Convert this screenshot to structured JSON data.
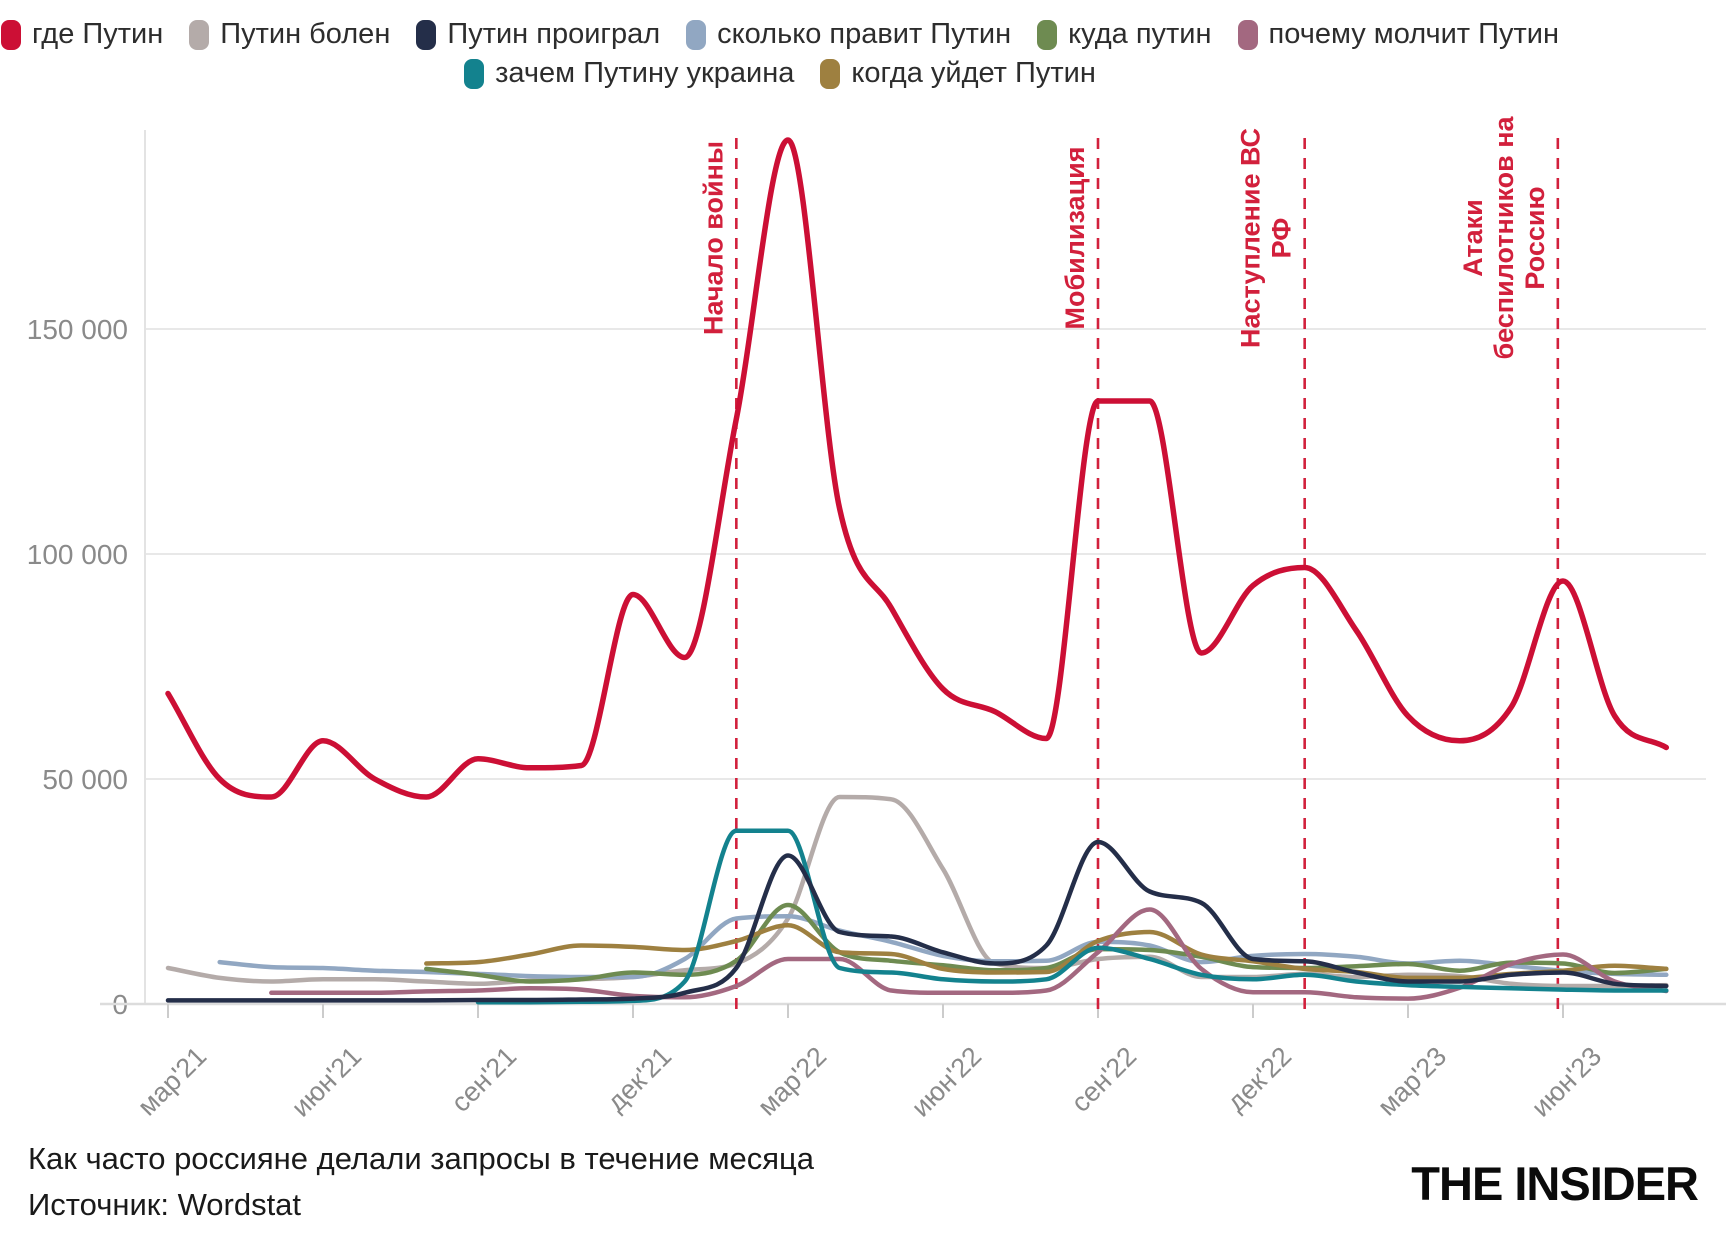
{
  "legend": {
    "rows": [
      [
        0,
        1,
        2,
        3,
        4,
        5
      ],
      [
        6,
        7
      ]
    ]
  },
  "footer": {
    "title": "Как часто россияне делали запросы в течение месяца",
    "source": "Источник: Wordstat"
  },
  "logo": {
    "text": "THE INSIDER"
  },
  "colors": {
    "annotation_red": "#d2203c",
    "grid": "#e8e8e8",
    "baseline": "#dcdcdc",
    "tick": "#cccccc",
    "axis_text": "#8a8a8a"
  },
  "chart_data": {
    "type": "line",
    "x": [
      "мар'21",
      "апр'21",
      "май'21",
      "июн'21",
      "июл'21",
      "авг'21",
      "сен'21",
      "окт'21",
      "ноя'21",
      "дек'21",
      "янв'22",
      "фев'22",
      "мар'22",
      "апр'22",
      "май'22",
      "июн'22",
      "июл'22",
      "авг'22",
      "сен'22",
      "окт'22",
      "ноя'22",
      "дек'22",
      "янв'23",
      "фев'23",
      "мар'23",
      "апр'23",
      "май'23",
      "июн'23",
      "июл'23",
      "авг'23"
    ],
    "x_tick_labels": [
      "мар'21",
      "июн'21",
      "сен'21",
      "дек'21",
      "мар'22",
      "июн'22",
      "сен'22",
      "дек'22",
      "мар'23",
      "июн'23"
    ],
    "x_tick_every": 3,
    "y_ticks": [
      0,
      50000,
      100000,
      150000
    ],
    "y_tick_labels": [
      "0",
      "50 000",
      "100 000",
      "150 000"
    ],
    "ylim": [
      0,
      195000
    ],
    "grid": "horizontal",
    "legend_position": "top",
    "series": [
      {
        "name": "где Путин",
        "color": "#cc0f35",
        "values": [
          69000,
          50000,
          46000,
          58500,
          50000,
          46000,
          54500,
          52500,
          53000,
          91000,
          77000,
          130000,
          192000,
          110000,
          88000,
          70000,
          65000,
          59000,
          134000,
          134000,
          78000,
          93000,
          97000,
          83000,
          64000,
          58500,
          66000,
          94000,
          64000,
          57000
        ]
      },
      {
        "name": "Путин болен",
        "color": "#b4aba9",
        "values": [
          8000,
          5800,
          5000,
          5500,
          5500,
          5000,
          4500,
          5200,
          5500,
          6000,
          7500,
          9000,
          19000,
          46000,
          45500,
          30000,
          9000,
          8000,
          10000,
          10500,
          6000,
          6000,
          6700,
          6000,
          6500,
          6200,
          4500,
          4000,
          4000,
          4200
        ]
      },
      {
        "name": "Путин проиграл",
        "color": "#242e49",
        "values": [
          800,
          800,
          800,
          800,
          800,
          800,
          900,
          900,
          1000,
          1200,
          2500,
          8000,
          33000,
          16000,
          15000,
          11500,
          9000,
          13000,
          36000,
          25000,
          22500,
          10000,
          9500,
          7000,
          5000,
          5000,
          6500,
          7000,
          4500,
          4000
        ]
      },
      {
        "name": "сколько правит Путин",
        "color": "#91a7c2",
        "values": [
          null,
          9300,
          8200,
          8000,
          7400,
          7100,
          6700,
          6200,
          6000,
          6000,
          10000,
          19000,
          19500,
          16300,
          13800,
          10700,
          9500,
          9600,
          13800,
          13000,
          9300,
          10700,
          11100,
          10500,
          9000,
          9600,
          8500,
          7400,
          6700,
          6500
        ]
      },
      {
        "name": "куда путин",
        "color": "#6e8b51",
        "values": [
          null,
          null,
          null,
          null,
          null,
          7800,
          6500,
          5000,
          5500,
          7000,
          6500,
          9600,
          22000,
          11500,
          9600,
          8600,
          7500,
          8000,
          12200,
          12000,
          10500,
          8200,
          8000,
          8400,
          8900,
          7400,
          9200,
          9000,
          6900,
          7800
        ]
      },
      {
        "name": "почему молчит Путин",
        "color": "#a36880",
        "values": [
          null,
          null,
          2500,
          2500,
          2500,
          2800,
          3000,
          3500,
          3200,
          1800,
          1500,
          4000,
          10000,
          10000,
          3000,
          2500,
          2500,
          3000,
          11500,
          21000,
          7800,
          2600,
          2600,
          1500,
          1200,
          3600,
          8900,
          11000,
          5000,
          2900
        ]
      },
      {
        "name": "зачем Путину украина",
        "color": "#13828e",
        "values": [
          null,
          null,
          null,
          null,
          null,
          null,
          400,
          400,
          500,
          700,
          5000,
          38500,
          38500,
          8000,
          7000,
          5500,
          5000,
          5500,
          12500,
          10000,
          6500,
          5500,
          6500,
          5000,
          4200,
          3800,
          3500,
          3200,
          3000,
          3000
        ]
      },
      {
        "name": "когда уйдет Путин",
        "color": "#9e8040",
        "values": [
          null,
          null,
          null,
          null,
          null,
          9000,
          9300,
          11000,
          13000,
          12700,
          12000,
          14000,
          17500,
          11500,
          11100,
          7800,
          7000,
          7100,
          14000,
          16000,
          11000,
          9500,
          7800,
          7100,
          5800,
          5800,
          6700,
          7400,
          8500,
          7800
        ]
      }
    ],
    "draw_order": [
      1,
      3,
      4,
      7,
      5,
      6,
      2,
      0
    ],
    "annotations": [
      {
        "lines": [
          "Начало войны"
        ],
        "label": "Начало войны",
        "month": 11
      },
      {
        "lines": [
          "Мобилизация"
        ],
        "label": "Мобилизация",
        "month": 18
      },
      {
        "lines": [
          "Наступление ВС",
          "РФ"
        ],
        "label": "Наступление ВС РФ",
        "month": 22
      },
      {
        "lines": [
          "Атаки",
          "беспилотников на",
          "Россию"
        ],
        "label": "Атаки беспилотников на Россию",
        "month": 26.9
      }
    ]
  }
}
